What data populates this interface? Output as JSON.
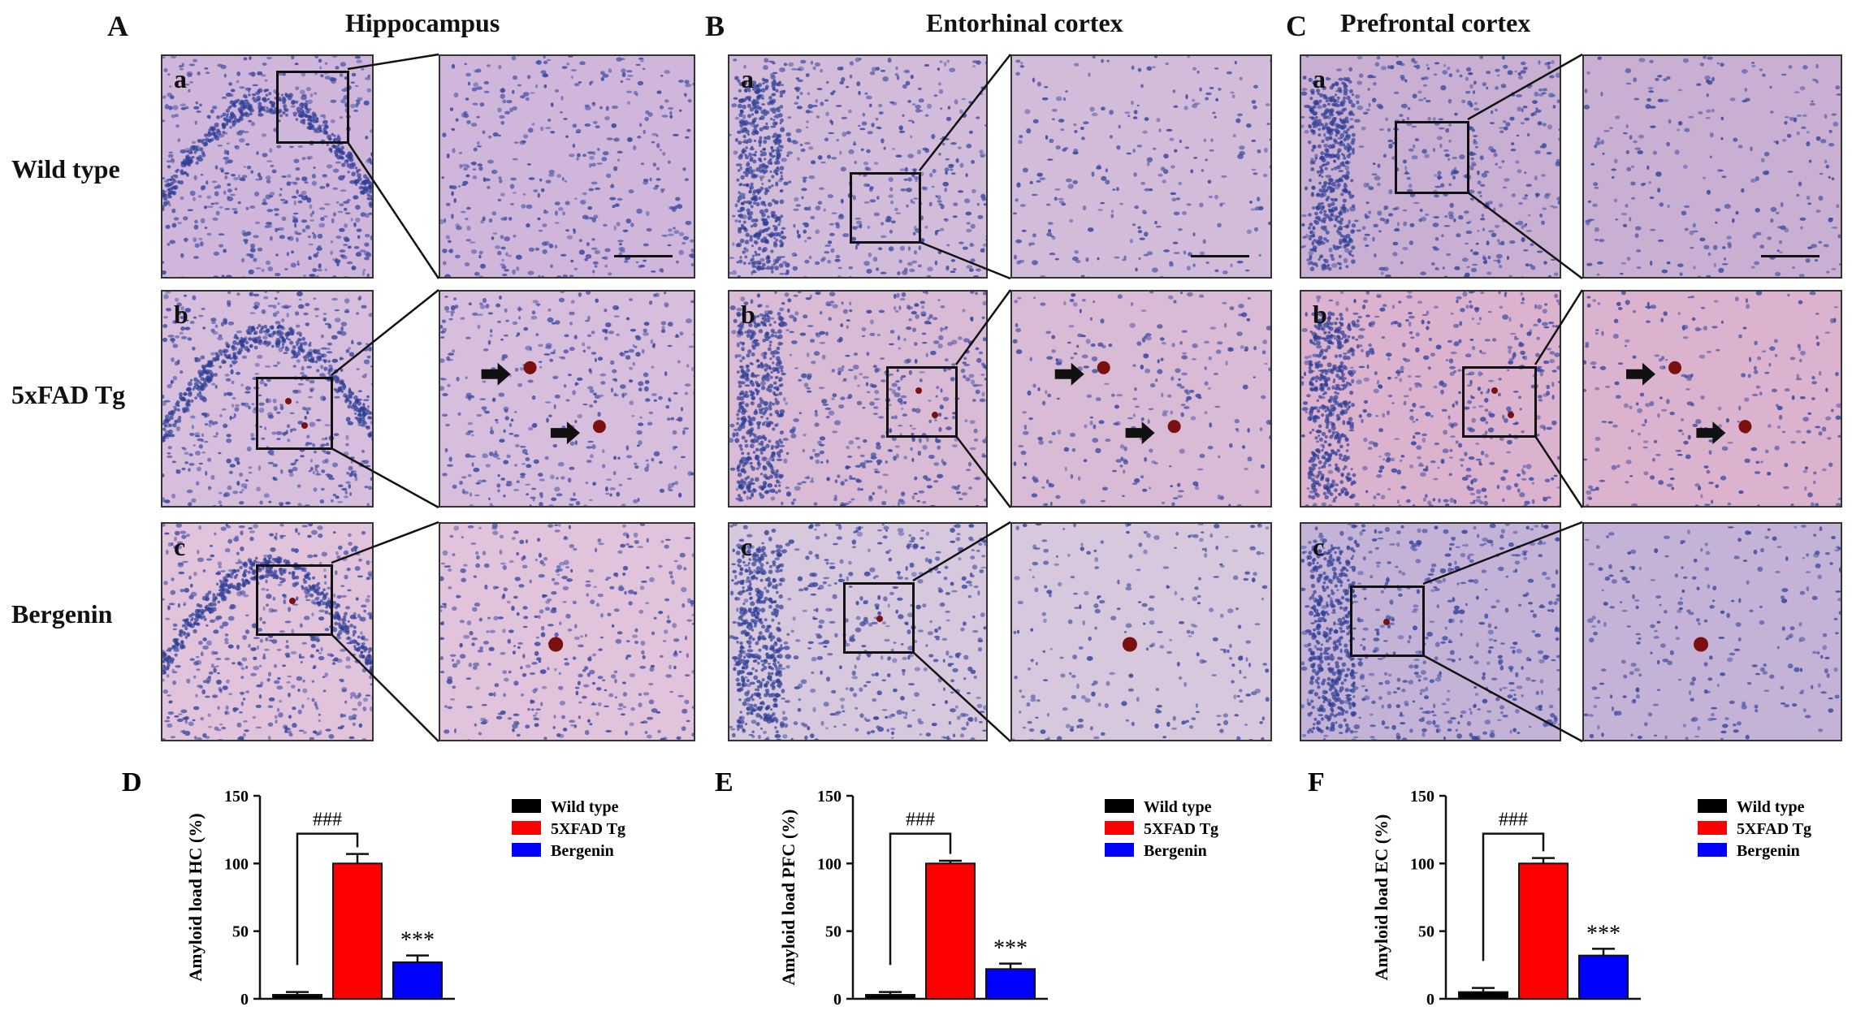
{
  "panels": {
    "A": {
      "letter": "A",
      "title": "Hippocampus",
      "scale": "_____"
    },
    "B": {
      "letter": "B",
      "title": "Entorhinal cortex"
    },
    "C": {
      "letter": "C",
      "title": "Prefrontal cortex"
    }
  },
  "rows": [
    {
      "label": "Wild type",
      "sub": "a"
    },
    {
      "label": "5xFAD Tg",
      "sub": "b"
    },
    {
      "label": "Bergenin",
      "sub": "c"
    }
  ],
  "colors": {
    "wild_type": "#000000",
    "tg": "#ff0000",
    "bergenin": "#0000ff",
    "tissue_pink": "#d9a6c8",
    "nucleus_blue": "#3b4aa0",
    "plaque": "#7a1010"
  },
  "chart_data": [
    {
      "panel": "D",
      "type": "bar",
      "ylabel": "Amyloid load HC (%)",
      "categories": [
        "Wild type",
        "5XFAD Tg",
        "Bergenin"
      ],
      "values": [
        3,
        100,
        27
      ],
      "errors": [
        2,
        7,
        5
      ],
      "ylim": [
        0,
        150
      ],
      "yticks": [
        "0",
        "50",
        "100",
        "150"
      ],
      "legend": [
        "Wild type",
        "5XFAD Tg",
        "Bergenin"
      ],
      "sig_bracket": "###",
      "sig_bar": "***"
    },
    {
      "panel": "E",
      "type": "bar",
      "ylabel": "Amyloid load PFC (%)",
      "categories": [
        "Wild type",
        "5XFAD Tg",
        "Bergenin"
      ],
      "values": [
        3,
        100,
        22
      ],
      "errors": [
        2,
        2,
        4
      ],
      "ylim": [
        0,
        150
      ],
      "yticks": [
        "0",
        "50",
        "100",
        "150"
      ],
      "legend": [
        "Wild type",
        "5XFAD Tg",
        "Bergenin"
      ],
      "sig_bracket": "###",
      "sig_bar": "***"
    },
    {
      "panel": "F",
      "type": "bar",
      "ylabel": "Amyloid load EC (%)",
      "categories": [
        "Wild type",
        "5XFAD Tg",
        "Bergenin"
      ],
      "values": [
        5,
        100,
        32
      ],
      "errors": [
        3,
        4,
        5
      ],
      "ylim": [
        0,
        150
      ],
      "yticks": [
        "0",
        "50",
        "100",
        "150"
      ],
      "legend": [
        "Wild type",
        "5XFAD Tg",
        "Bergenin"
      ],
      "sig_bracket": "###",
      "sig_bar": "***"
    }
  ]
}
